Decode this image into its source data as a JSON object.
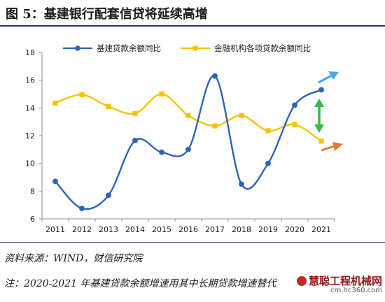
{
  "figure": {
    "title": "图 5：基建银行配套信贷将延续高增",
    "source": "资料来源：WIND，财信研究院",
    "note": "注：2020-2021 年基建贷款余额增速用其中长期贷款增速替代",
    "watermark_main": "慧聪工程机械网",
    "watermark_sub": "cm.hc360.com"
  },
  "chart_data": {
    "type": "line",
    "title": "",
    "xlabel": "",
    "ylabel": "",
    "x": [
      "2011",
      "2012",
      "2013",
      "2014",
      "2015",
      "2016",
      "2017",
      "2018",
      "2019",
      "2020",
      "2021"
    ],
    "ylim": [
      6,
      18
    ],
    "yticks": [
      6,
      8,
      10,
      12,
      14,
      16,
      18
    ],
    "grid": false,
    "legend_position": "top",
    "smooth": true,
    "series": [
      {
        "name": "基建贷款余额同比",
        "color": "#2f62b8",
        "marker": "circle",
        "values": [
          8.7,
          6.75,
          7.7,
          11.65,
          10.8,
          11.0,
          16.3,
          8.5,
          10.0,
          14.2,
          15.3
        ]
      },
      {
        "name": "金融机构各项贷款余额同比",
        "color": "#f5c400",
        "marker": "square",
        "values": [
          14.35,
          14.95,
          14.1,
          13.6,
          15.0,
          13.45,
          12.7,
          13.45,
          12.35,
          12.8,
          11.6
        ]
      }
    ],
    "annotations": [
      {
        "kind": "arrow",
        "color": "#4aa8e6",
        "meaning": "upward trend"
      },
      {
        "kind": "double-arrow",
        "color": "#3bb54a",
        "meaning": "gap"
      },
      {
        "kind": "arrow",
        "color": "#e57a32",
        "meaning": "slight upward"
      }
    ]
  }
}
